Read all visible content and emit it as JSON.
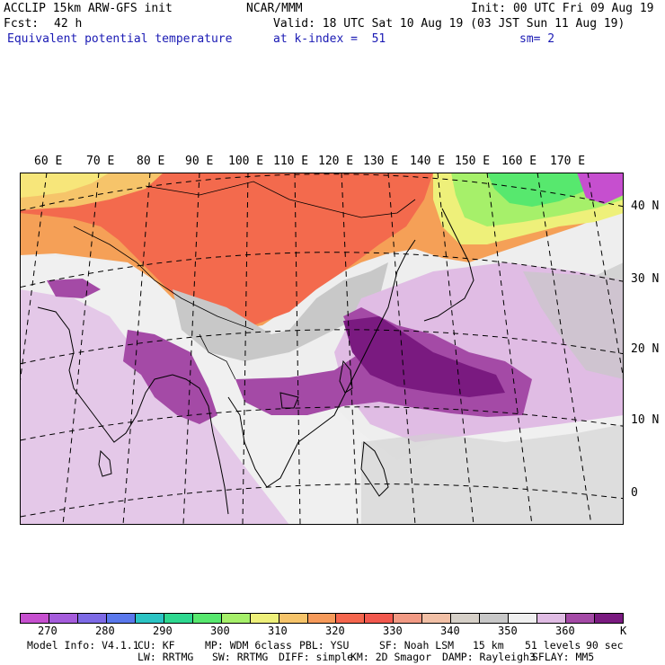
{
  "header": {
    "model": "ACCLIP 15km ARW-GFS init",
    "fcst_label": "Fcst:",
    "fcst_value": "42 h",
    "field": "Equivalent potential temperature",
    "center": "NCAR/MMM",
    "init": "Init: 00 UTC Fri 09 Aug 19",
    "valid": "Valid: 18 UTC Sat 10 Aug 19 (03 JST Sun 11 Aug 19)",
    "level": "at k-index =  51",
    "smooth": "sm= 2"
  },
  "map": {
    "lon_labels": [
      "60 E",
      "70 E",
      "80 E",
      "90 E",
      "100 E",
      "110 E",
      "120 E",
      "130 E",
      "140 E",
      "150 E",
      "160 E",
      "170 E"
    ],
    "lat_labels": [
      "40 N",
      "30 N",
      "20 N",
      "10 N",
      "0"
    ]
  },
  "colorbar": {
    "colors": [
      "#c64fcf",
      "#a55cdc",
      "#7d6ae6",
      "#5a78ec",
      "#2bc4c4",
      "#2ed890",
      "#57e86e",
      "#a6f06a",
      "#eef07a",
      "#f6c46a",
      "#f69a5a",
      "#f5664e",
      "#f2584e",
      "#f29a84",
      "#f2c0a6",
      "#d6d0c8",
      "#c8c8c8",
      "#f0f0f0",
      "#e0bce4",
      "#a44aa6",
      "#7a1a80"
    ],
    "labels": [
      "270",
      "280",
      "290",
      "300",
      "310",
      "320",
      "330",
      "340",
      "350",
      "360"
    ],
    "unit": "K"
  },
  "footer": {
    "line1": [
      "Model Info: V4.1.1",
      "CU: KF",
      "MP: WDM 6class",
      "PBL: YSU",
      "SF: Noah LSM",
      "15 km",
      "51 levels",
      "90 sec"
    ],
    "line2": [
      "LW: RRTMG",
      "SW: RRTMG",
      "DIFF: simple",
      "KM: 2D Smagor",
      "DAMP: Rayleigh3",
      "SFLAY: MM5"
    ]
  }
}
